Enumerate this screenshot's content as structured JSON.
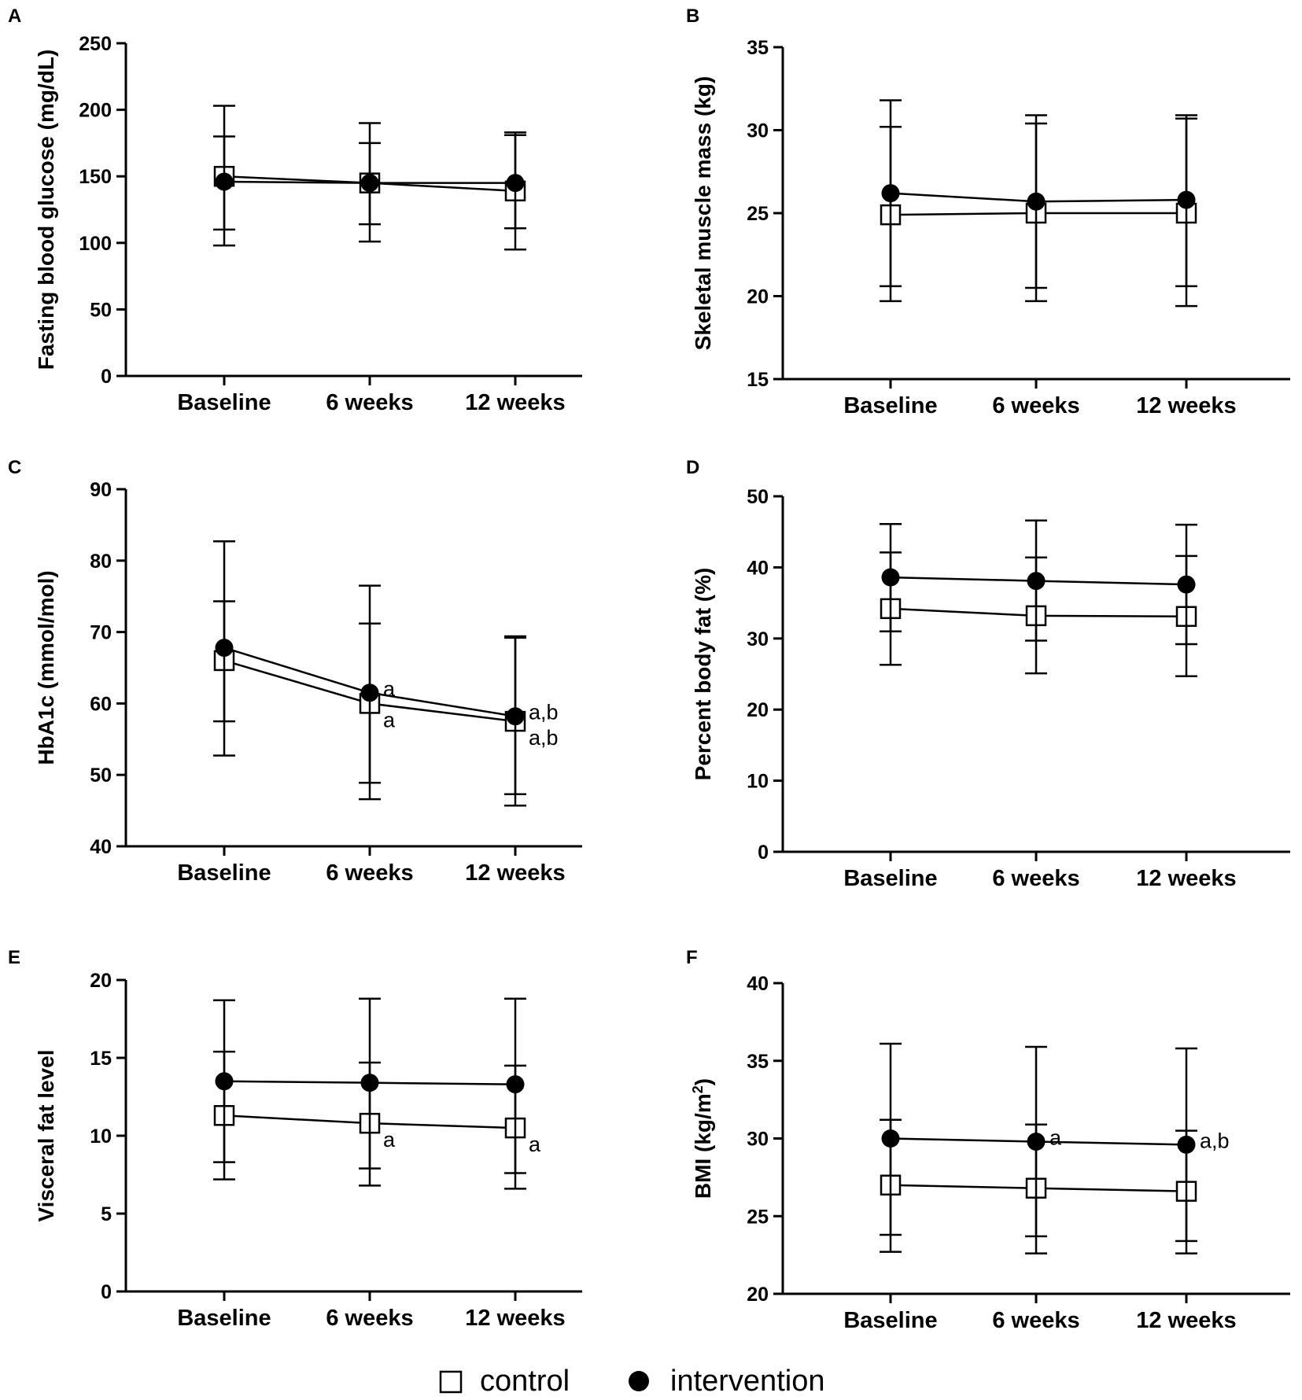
{
  "legend": {
    "control_label": "control",
    "intervention_label": "intervention"
  },
  "chart_data": [
    {
      "panel": "A",
      "type": "line",
      "ylabel": "Fasting blood glucose (mg/dL)",
      "ylabel_sup": "",
      "ylabel_suffix": "",
      "categories": [
        "Baseline",
        "6 weeks",
        "12 weeks"
      ],
      "ylim": [
        0,
        250
      ],
      "yticks": [
        0,
        50,
        100,
        150,
        200,
        250
      ],
      "series": [
        {
          "name": "control",
          "values": [
            150,
            145,
            139
          ],
          "err_low": [
            98,
            101,
            95
          ],
          "err_high": [
            203,
            190,
            183
          ],
          "annotations": [
            "",
            "",
            ""
          ]
        },
        {
          "name": "intervention",
          "values": [
            146,
            145,
            145
          ],
          "err_low": [
            110,
            114,
            111
          ],
          "err_high": [
            180,
            175,
            181
          ],
          "annotations": [
            "",
            "",
            ""
          ]
        }
      ]
    },
    {
      "panel": "B",
      "type": "line",
      "ylabel": "Skeletal muscle mass (kg)",
      "ylabel_sup": "",
      "ylabel_suffix": "",
      "categories": [
        "Baseline",
        "6 weeks",
        "12 weeks"
      ],
      "ylim": [
        15,
        35
      ],
      "yticks": [
        15,
        20,
        25,
        30,
        35
      ],
      "series": [
        {
          "name": "control",
          "values": [
            24.9,
            25.0,
            25.0
          ],
          "err_low": [
            19.7,
            19.7,
            19.4
          ],
          "err_high": [
            30.2,
            30.4,
            30.7
          ],
          "annotations": [
            "",
            "",
            ""
          ]
        },
        {
          "name": "intervention",
          "values": [
            26.2,
            25.7,
            25.8
          ],
          "err_low": [
            20.6,
            20.5,
            20.6
          ],
          "err_high": [
            31.8,
            30.9,
            30.9
          ],
          "annotations": [
            "",
            "",
            ""
          ]
        }
      ]
    },
    {
      "panel": "C",
      "type": "line",
      "ylabel": "HbA1c  (mmol/mol)",
      "ylabel_sup": "",
      "ylabel_suffix": "",
      "categories": [
        "Baseline",
        "6 weeks",
        "12 weeks"
      ],
      "ylim": [
        40,
        90
      ],
      "yticks": [
        40,
        50,
        60,
        70,
        80,
        90
      ],
      "series": [
        {
          "name": "control",
          "values": [
            66,
            60,
            57.5
          ],
          "err_low": [
            52.7,
            46.6,
            45.7
          ],
          "err_high": [
            74.3,
            71.2,
            69.2
          ],
          "annotations": [
            "",
            "a",
            "a,b"
          ]
        },
        {
          "name": "intervention",
          "values": [
            67.8,
            61.5,
            58.2
          ],
          "err_low": [
            57.5,
            48.9,
            47.3
          ],
          "err_high": [
            82.7,
            76.5,
            69.4
          ],
          "annotations": [
            "",
            "a",
            "a,b"
          ]
        }
      ]
    },
    {
      "panel": "D",
      "type": "line",
      "ylabel": "Percent body fat (%)",
      "ylabel_sup": "",
      "ylabel_suffix": "",
      "categories": [
        "Baseline",
        "6 weeks",
        "12 weeks"
      ],
      "ylim": [
        0,
        50
      ],
      "yticks": [
        0,
        10,
        20,
        30,
        40,
        50
      ],
      "series": [
        {
          "name": "control",
          "values": [
            34.2,
            33.2,
            33.1
          ],
          "err_low": [
            26.3,
            25.1,
            24.7
          ],
          "err_high": [
            42.1,
            41.4,
            41.6
          ],
          "annotations": [
            "",
            "",
            ""
          ]
        },
        {
          "name": "intervention",
          "values": [
            38.6,
            38.1,
            37.6
          ],
          "err_low": [
            31.0,
            29.7,
            29.2
          ],
          "err_high": [
            46.1,
            46.6,
            46.0
          ],
          "annotations": [
            "",
            "",
            ""
          ]
        }
      ]
    },
    {
      "panel": "E",
      "type": "line",
      "ylabel": "Visceral fat level",
      "ylabel_sup": "",
      "ylabel_suffix": "",
      "categories": [
        "Baseline",
        "6 weeks",
        "12 weeks"
      ],
      "ylim": [
        0,
        20
      ],
      "yticks": [
        0,
        5,
        10,
        15,
        20
      ],
      "series": [
        {
          "name": "control",
          "values": [
            11.3,
            10.8,
            10.5
          ],
          "err_low": [
            7.2,
            6.8,
            6.6
          ],
          "err_high": [
            15.4,
            14.7,
            14.5
          ],
          "annotations": [
            "",
            "a",
            "a"
          ]
        },
        {
          "name": "intervention",
          "values": [
            13.5,
            13.4,
            13.3
          ],
          "err_low": [
            8.3,
            7.9,
            7.6
          ],
          "err_high": [
            18.7,
            18.8,
            18.8
          ],
          "annotations": [
            "",
            "",
            ""
          ]
        }
      ]
    },
    {
      "panel": "F",
      "type": "line",
      "ylabel": "BMI (kg/m",
      "ylabel_sup": "2",
      "ylabel_suffix": ")",
      "categories": [
        "Baseline",
        "6 weeks",
        "12 weeks"
      ],
      "ylim": [
        20,
        40
      ],
      "yticks": [
        20,
        25,
        30,
        35,
        40
      ],
      "series": [
        {
          "name": "control",
          "values": [
            27.0,
            26.8,
            26.6
          ],
          "err_low": [
            22.7,
            22.6,
            22.6
          ],
          "err_high": [
            31.2,
            30.9,
            30.5
          ],
          "annotations": [
            "",
            "",
            ""
          ]
        },
        {
          "name": "intervention",
          "values": [
            30.0,
            29.8,
            29.6
          ],
          "err_low": [
            23.8,
            23.7,
            23.4
          ],
          "err_high": [
            36.1,
            35.9,
            35.8
          ],
          "annotations": [
            "",
            "a",
            "a,b"
          ]
        }
      ]
    }
  ]
}
